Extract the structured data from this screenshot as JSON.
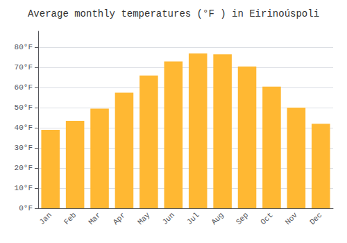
{
  "chart_data": {
    "type": "bar",
    "title": "Average monthly temperatures (°F ) in Eirinoúspoli",
    "categories": [
      "Jan",
      "Feb",
      "Mar",
      "Apr",
      "May",
      "Jun",
      "Jul",
      "Aug",
      "Sep",
      "Oct",
      "Nov",
      "Dec"
    ],
    "values": [
      39,
      43.5,
      49.5,
      57.5,
      66,
      73,
      77,
      76.5,
      70.5,
      60.5,
      50,
      42
    ],
    "color": "#FFB833",
    "ylim": [
      0,
      88
    ],
    "yticks": [
      {
        "value": 0,
        "label": "0°F"
      },
      {
        "value": 10,
        "label": "10°F"
      },
      {
        "value": 20,
        "label": "20°F"
      },
      {
        "value": 30,
        "label": "30°F"
      },
      {
        "value": 40,
        "label": "40°F"
      },
      {
        "value": 50,
        "label": "50°F"
      },
      {
        "value": 60,
        "label": "60°F"
      },
      {
        "value": 70,
        "label": "70°F"
      },
      {
        "value": 80,
        "label": "80°F"
      }
    ],
    "grid": true
  }
}
